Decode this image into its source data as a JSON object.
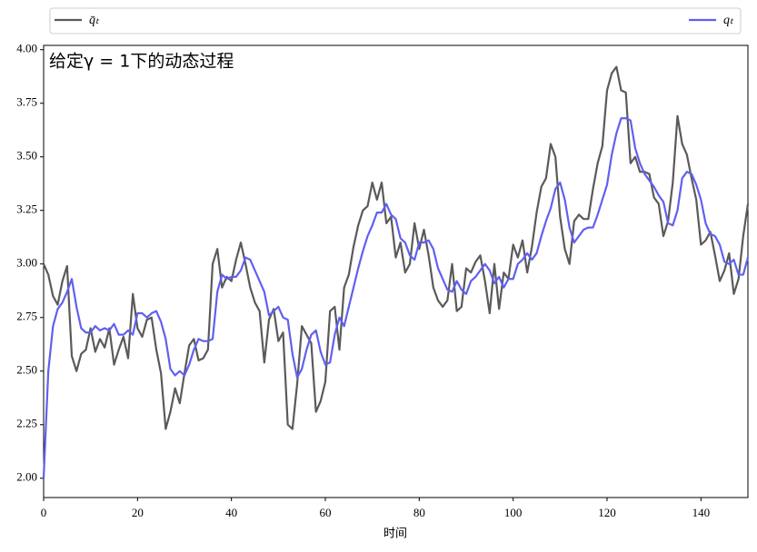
{
  "chart_data": {
    "type": "line",
    "title": "给定γ = 1下的动态过程",
    "xlabel": "时间",
    "x": [
      0,
      1,
      2,
      3,
      4,
      5,
      6,
      7,
      8,
      9,
      10,
      11,
      12,
      13,
      14,
      15,
      16,
      17,
      18,
      19,
      20,
      21,
      22,
      23,
      24,
      25,
      26,
      27,
      28,
      29,
      30,
      31,
      32,
      33,
      34,
      35,
      36,
      37,
      38,
      39,
      40,
      41,
      42,
      43,
      44,
      45,
      46,
      47,
      48,
      49,
      50,
      51,
      52,
      53,
      54,
      55,
      56,
      57,
      58,
      59,
      60,
      61,
      62,
      63,
      64,
      65,
      66,
      67,
      68,
      69,
      70,
      71,
      72,
      73,
      74,
      75,
      76,
      77,
      78,
      79,
      80,
      81,
      82,
      83,
      84,
      85,
      86,
      87,
      88,
      89,
      90,
      91,
      92,
      93,
      94,
      95,
      96,
      97,
      98,
      99,
      100,
      101,
      102,
      103,
      104,
      105,
      106,
      107,
      108,
      109,
      110,
      111,
      112,
      113,
      114,
      115,
      116,
      117,
      118,
      119,
      120,
      121,
      122,
      123,
      124,
      125,
      126,
      127,
      128,
      129,
      130,
      131,
      132,
      133,
      134,
      135,
      136,
      137,
      138,
      139,
      140,
      141,
      142,
      143,
      144,
      145,
      146,
      147,
      148,
      149,
      150
    ],
    "series": [
      {
        "name": "q̄ₜ",
        "color": "#5a5a5a",
        "values": [
          3.0,
          2.95,
          2.85,
          2.81,
          2.92,
          2.99,
          2.57,
          2.5,
          2.58,
          2.6,
          2.7,
          2.59,
          2.65,
          2.61,
          2.7,
          2.53,
          2.6,
          2.66,
          2.56,
          2.86,
          2.7,
          2.66,
          2.74,
          2.75,
          2.6,
          2.49,
          2.23,
          2.31,
          2.42,
          2.35,
          2.49,
          2.62,
          2.65,
          2.55,
          2.56,
          2.6,
          3.0,
          3.07,
          2.89,
          2.94,
          2.92,
          3.02,
          3.1,
          3.0,
          2.89,
          2.82,
          2.78,
          2.54,
          2.74,
          2.79,
          2.64,
          2.68,
          2.25,
          2.23,
          2.44,
          2.71,
          2.67,
          2.63,
          2.31,
          2.36,
          2.45,
          2.78,
          2.8,
          2.6,
          2.89,
          2.95,
          3.08,
          3.18,
          3.25,
          3.27,
          3.38,
          3.3,
          3.38,
          3.19,
          3.22,
          3.03,
          3.1,
          2.96,
          3.0,
          3.19,
          3.07,
          3.16,
          3.04,
          2.89,
          2.83,
          2.8,
          2.83,
          3.0,
          2.78,
          2.8,
          2.98,
          2.96,
          3.01,
          3.04,
          2.92,
          2.77,
          3.0,
          2.79,
          2.96,
          2.93,
          3.09,
          3.03,
          3.11,
          2.96,
          3.08,
          3.24,
          3.36,
          3.4,
          3.56,
          3.5,
          3.22,
          3.07,
          3.0,
          3.2,
          3.23,
          3.21,
          3.21,
          3.35,
          3.47,
          3.55,
          3.81,
          3.89,
          3.92,
          3.81,
          3.8,
          3.47,
          3.5,
          3.43,
          3.43,
          3.42,
          3.31,
          3.28,
          3.13,
          3.2,
          3.38,
          3.69,
          3.56,
          3.51,
          3.4,
          3.3,
          3.09,
          3.11,
          3.15,
          3.04,
          2.92,
          2.97,
          3.05,
          2.86,
          2.93,
          3.13,
          3.28
        ]
      },
      {
        "name": "qₜ",
        "color": "#6060f0",
        "values": [
          2.0,
          2.5,
          2.71,
          2.79,
          2.82,
          2.87,
          2.93,
          2.8,
          2.7,
          2.68,
          2.68,
          2.71,
          2.69,
          2.7,
          2.69,
          2.72,
          2.67,
          2.67,
          2.69,
          2.67,
          2.77,
          2.77,
          2.75,
          2.77,
          2.78,
          2.73,
          2.65,
          2.51,
          2.48,
          2.5,
          2.48,
          2.53,
          2.6,
          2.65,
          2.64,
          2.64,
          2.65,
          2.87,
          2.95,
          2.93,
          2.94,
          2.94,
          2.97,
          3.03,
          3.02,
          2.97,
          2.92,
          2.87,
          2.76,
          2.78,
          2.8,
          2.75,
          2.74,
          2.58,
          2.47,
          2.51,
          2.6,
          2.67,
          2.69,
          2.59,
          2.53,
          2.54,
          2.67,
          2.75,
          2.71,
          2.8,
          2.89,
          2.98,
          3.06,
          3.13,
          3.18,
          3.24,
          3.24,
          3.28,
          3.23,
          3.21,
          3.12,
          3.1,
          3.04,
          3.02,
          3.1,
          3.1,
          3.11,
          3.07,
          2.98,
          2.93,
          2.88,
          2.87,
          2.92,
          2.88,
          2.86,
          2.92,
          2.94,
          2.97,
          3.0,
          2.97,
          2.91,
          2.94,
          2.89,
          2.93,
          2.93,
          3.0,
          3.02,
          3.05,
          3.02,
          3.05,
          3.13,
          3.2,
          3.26,
          3.35,
          3.38,
          3.3,
          3.17,
          3.1,
          3.13,
          3.16,
          3.17,
          3.17,
          3.23,
          3.3,
          3.37,
          3.51,
          3.61,
          3.68,
          3.68,
          3.67,
          3.54,
          3.47,
          3.42,
          3.39,
          3.36,
          3.32,
          3.29,
          3.19,
          3.18,
          3.25,
          3.4,
          3.43,
          3.42,
          3.37,
          3.3,
          3.19,
          3.14,
          3.13,
          3.09,
          3.01,
          3.0,
          3.02,
          2.95,
          2.95,
          3.03
        ]
      }
    ],
    "xlim": [
      0,
      150
    ],
    "xticks": [
      0,
      20,
      40,
      60,
      80,
      100,
      120,
      140
    ],
    "ylim": [
      1.91,
      4.02
    ],
    "yticks": [
      {
        "value": 2,
        "label": "2.00"
      },
      2.25,
      {
        "value": 2.5,
        "label": "2.50"
      },
      2.75,
      {
        "value": 3,
        "label": "3.00"
      },
      3.25,
      {
        "value": 3.5,
        "label": "3.50"
      },
      3.75,
      {
        "value": 4,
        "label": "4.00"
      }
    ],
    "legend": "top"
  }
}
